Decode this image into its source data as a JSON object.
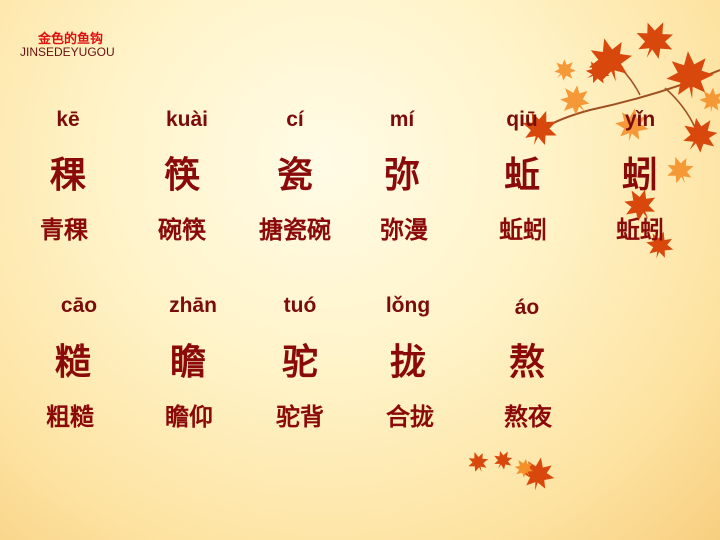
{
  "title": {
    "chinese": "金色的鱼钩",
    "pinyin": "JINSEDEYUGOU"
  },
  "rows": [
    {
      "pinyin": [
        "kē",
        "kuài",
        "cí",
        "mí",
        "qiū",
        "yǐn"
      ],
      "chars": [
        "稞",
        "筷",
        "瓷",
        "弥",
        "蚯",
        "蚓"
      ],
      "words": [
        "青稞",
        "碗筷",
        "搪瓷碗",
        "弥漫",
        "蚯蚓",
        "蚯蚓"
      ]
    },
    {
      "pinyin": [
        "cāo",
        "zhān",
        "tuó",
        "lǒng",
        "áo"
      ],
      "chars": [
        "糙",
        "瞻",
        "驼",
        "拢",
        "熬"
      ],
      "words": [
        "粗糙",
        "瞻仰",
        "驼背",
        "合拢",
        "熬夜"
      ]
    }
  ],
  "colors": {
    "title": "#e01010",
    "text": "#8a0a0a",
    "leaf_dark": "#d8480c",
    "leaf_light": "#f5902a"
  },
  "decoration": [
    "maple-leaves-top-right",
    "maple-leaves-bottom"
  ]
}
